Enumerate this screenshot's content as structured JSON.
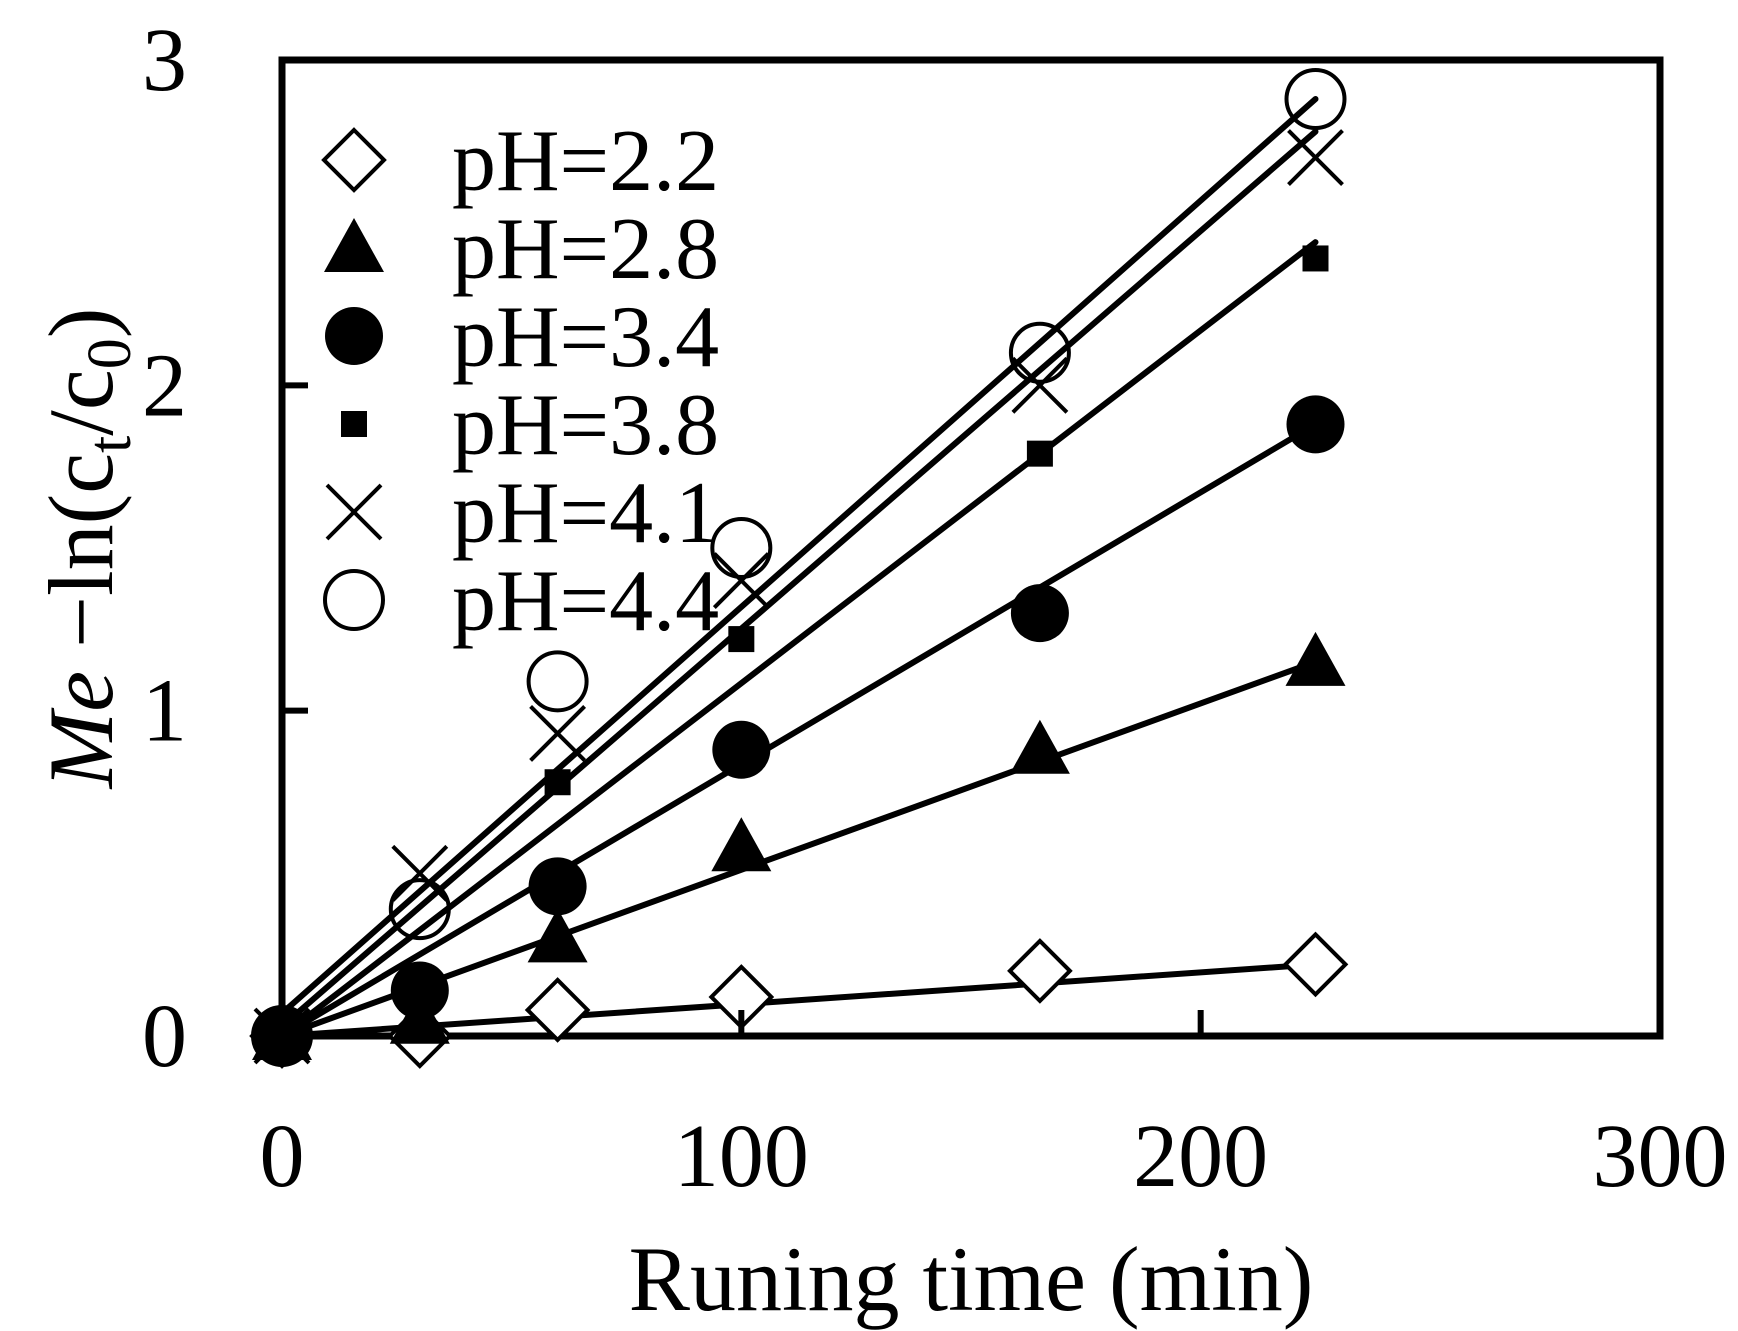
{
  "chart_data": {
    "type": "scatter",
    "title": "",
    "xlabel": "Runing time (min)",
    "ylabel": {
      "italic": "Me",
      "prefix": " −ln(c",
      "sub1": "t",
      "mid": "/c",
      "sub2": "0",
      "suffix": ")"
    },
    "xlim": [
      0,
      300
    ],
    "ylim": [
      0,
      3
    ],
    "xticks": [
      "0",
      "100",
      "200",
      "300"
    ],
    "yticks": [
      "0",
      "1",
      "2",
      "3"
    ],
    "grid": false,
    "legend_position": "top-left",
    "series": [
      {
        "name": "pH=2.2",
        "marker": "diamond-open",
        "x": [
          0,
          30,
          60,
          100,
          165,
          225
        ],
        "y": [
          0,
          0,
          0.08,
          0.12,
          0.2,
          0.22
        ],
        "fit": {
          "x": [
            0,
            225
          ],
          "y": [
            0,
            0.22
          ]
        }
      },
      {
        "name": "pH=2.8",
        "marker": "triangle-filled",
        "x": [
          0,
          30,
          60,
          100,
          165,
          225
        ],
        "y": [
          0,
          0.05,
          0.3,
          0.58,
          0.88,
          1.15
        ],
        "fit": {
          "x": [
            0,
            225
          ],
          "y": [
            0,
            1.15
          ]
        }
      },
      {
        "name": "pH=3.4",
        "marker": "circle-filled",
        "x": [
          0,
          30,
          60,
          100,
          165,
          225
        ],
        "y": [
          0,
          0.14,
          0.46,
          0.88,
          1.3,
          1.88
        ],
        "fit": {
          "x": [
            0,
            225
          ],
          "y": [
            0,
            1.88
          ]
        }
      },
      {
        "name": "pH=3.8",
        "marker": "square-filled",
        "x": [
          0,
          30,
          60,
          100,
          165,
          225
        ],
        "y": [
          0,
          0.1,
          0.78,
          1.22,
          1.79,
          2.39
        ],
        "fit": {
          "x": [
            0,
            225
          ],
          "y": [
            0,
            2.44
          ]
        }
      },
      {
        "name": "pH=4.1",
        "marker": "x",
        "x": [
          0,
          30,
          60,
          100,
          165,
          225
        ],
        "y": [
          0,
          0.5,
          0.93,
          1.4,
          2.0,
          2.7
        ],
        "fit": {
          "x": [
            0,
            225
          ],
          "y": [
            0.03,
            2.78
          ]
        }
      },
      {
        "name": "pH=4.4",
        "marker": "circle-open",
        "x": [
          0,
          30,
          60,
          100,
          165,
          225
        ],
        "y": [
          0,
          0.39,
          1.09,
          1.5,
          2.1,
          2.88
        ],
        "fit": {
          "x": [
            0,
            225
          ],
          "y": [
            0.07,
            2.88
          ]
        }
      }
    ]
  }
}
